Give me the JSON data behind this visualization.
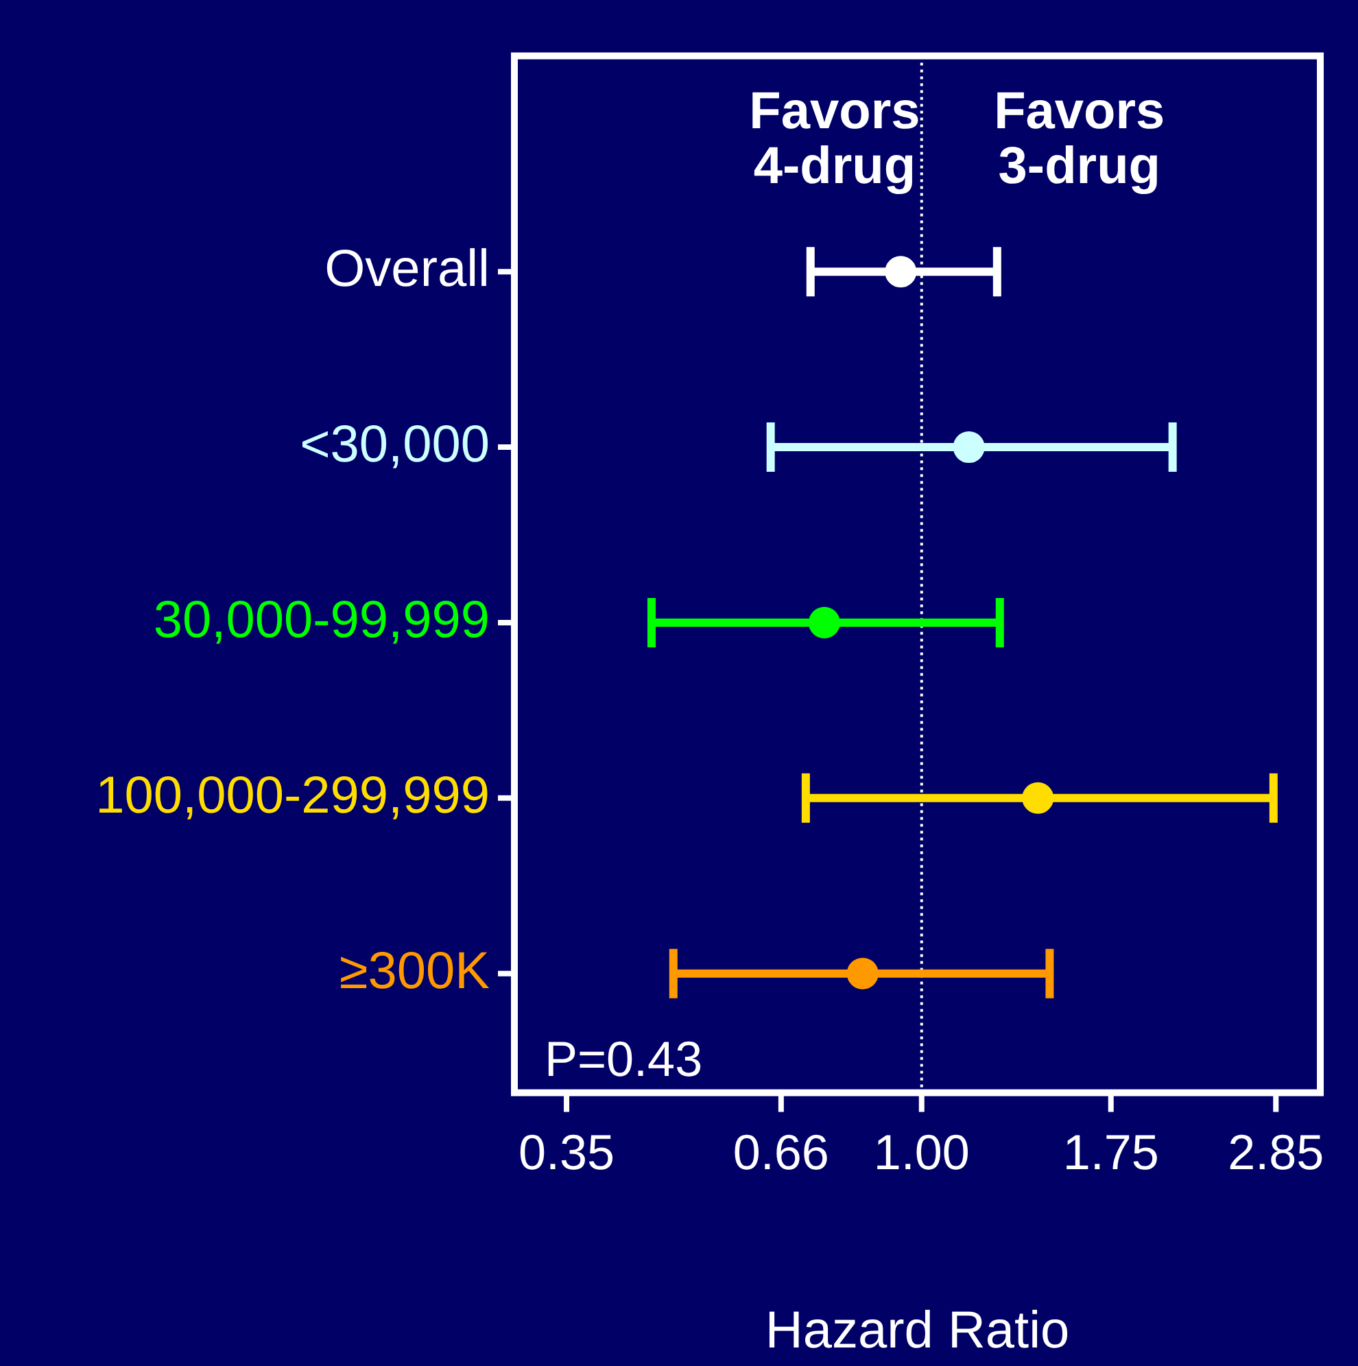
{
  "chart_data": {
    "type": "scatter",
    "orientation": "horizontal",
    "xlabel": "Hazard Ratio",
    "categories": [
      "Overall",
      "<30,000",
      "30,000-99,999",
      "100,000-299,999",
      "≥300K"
    ],
    "values": [
      0.94,
      1.15,
      0.75,
      1.41,
      0.84
    ],
    "errors": [
      [
        0.72,
        1.25
      ],
      [
        0.64,
        2.1
      ],
      [
        0.45,
        1.26
      ],
      [
        0.71,
        2.83
      ],
      [
        0.48,
        1.46
      ]
    ],
    "colors": [
      "#ffffff",
      "#ccffff",
      "#00ff00",
      "#ffdd00",
      "#ff9900"
    ],
    "xlim": [
      0.3,
      3.25
    ],
    "xticks": [
      0.35,
      0.66,
      {
        "value": 1,
        "label": "1.00"
      },
      1.75,
      2.85
    ],
    "log": "x",
    "ref_lines": [
      {
        "axis": "x",
        "value": 1,
        "color": "#ffffff",
        "line_style": "dotted"
      }
    ],
    "annotations": [
      "Favors\n4-drug",
      "Favors\n3-drug",
      "P=0.43"
    ],
    "marker": "circle",
    "grid": false,
    "legend": false
  }
}
